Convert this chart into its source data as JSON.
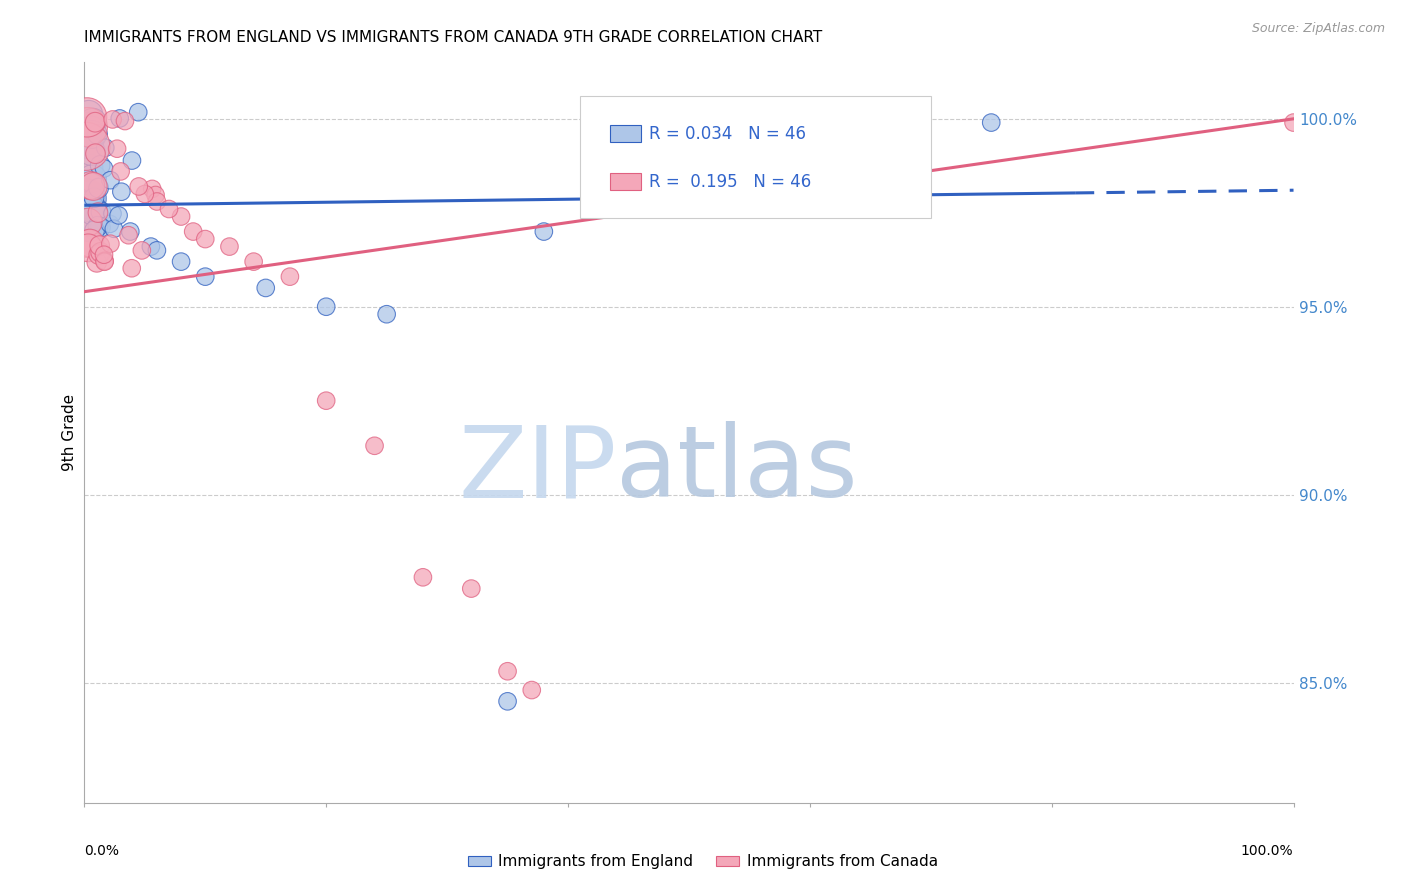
{
  "title": "IMMIGRANTS FROM ENGLAND VS IMMIGRANTS FROM CANADA 9TH GRADE CORRELATION CHART",
  "source": "Source: ZipAtlas.com",
  "ylabel": "9th Grade",
  "y_tick_labels": [
    "85.0%",
    "90.0%",
    "95.0%",
    "100.0%"
  ],
  "y_tick_values": [
    0.85,
    0.9,
    0.95,
    1.0
  ],
  "x_range": [
    0.0,
    1.0
  ],
  "y_range": [
    0.818,
    1.015
  ],
  "legend_england": "Immigrants from England",
  "legend_canada": "Immigrants from Canada",
  "r_england": "0.034",
  "n_england": "46",
  "r_canada": "0.195",
  "n_canada": "46",
  "england_color": "#aec6e8",
  "canada_color": "#f4a7b9",
  "england_line_color": "#3060c0",
  "canada_line_color": "#e06080",
  "background_color": "#ffffff",
  "watermark_zip_color": "#c8d8ec",
  "watermark_atlas_color": "#b8cce0",
  "eng_intercept": 0.978,
  "eng_slope": 0.008,
  "can_intercept": 0.952,
  "can_slope": 0.048
}
